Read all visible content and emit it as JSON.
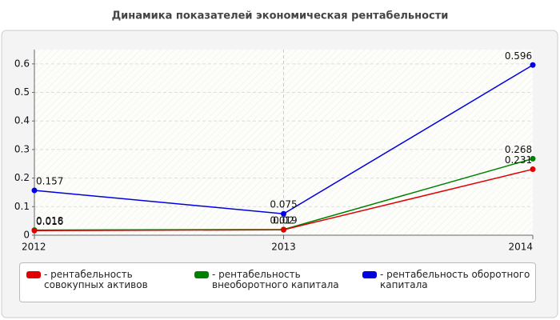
{
  "chart_data": {
    "type": "line",
    "title": "Динамика показателей экономическая рентабельности",
    "categories": [
      "2012",
      "2013",
      "2014"
    ],
    "series": [
      {
        "name": "- рентабельность оборотного капитала",
        "color": "#0000e0",
        "values": [
          0.157,
          0.075,
          0.596
        ]
      },
      {
        "name": "- рентабельность внеоборотного капитала",
        "color": "#008000",
        "values": [
          0.018,
          0.02,
          0.268
        ]
      },
      {
        "name": "- рентабельность совокупных активов",
        "color": "#e00000",
        "values": [
          0.016,
          0.019,
          0.231
        ]
      }
    ],
    "legend_order": [
      2,
      1,
      0
    ],
    "ylim": [
      0,
      0.65
    ],
    "yticks": [
      0,
      0.1,
      0.2,
      0.3,
      0.4,
      0.5,
      0.6
    ],
    "grid": true
  }
}
